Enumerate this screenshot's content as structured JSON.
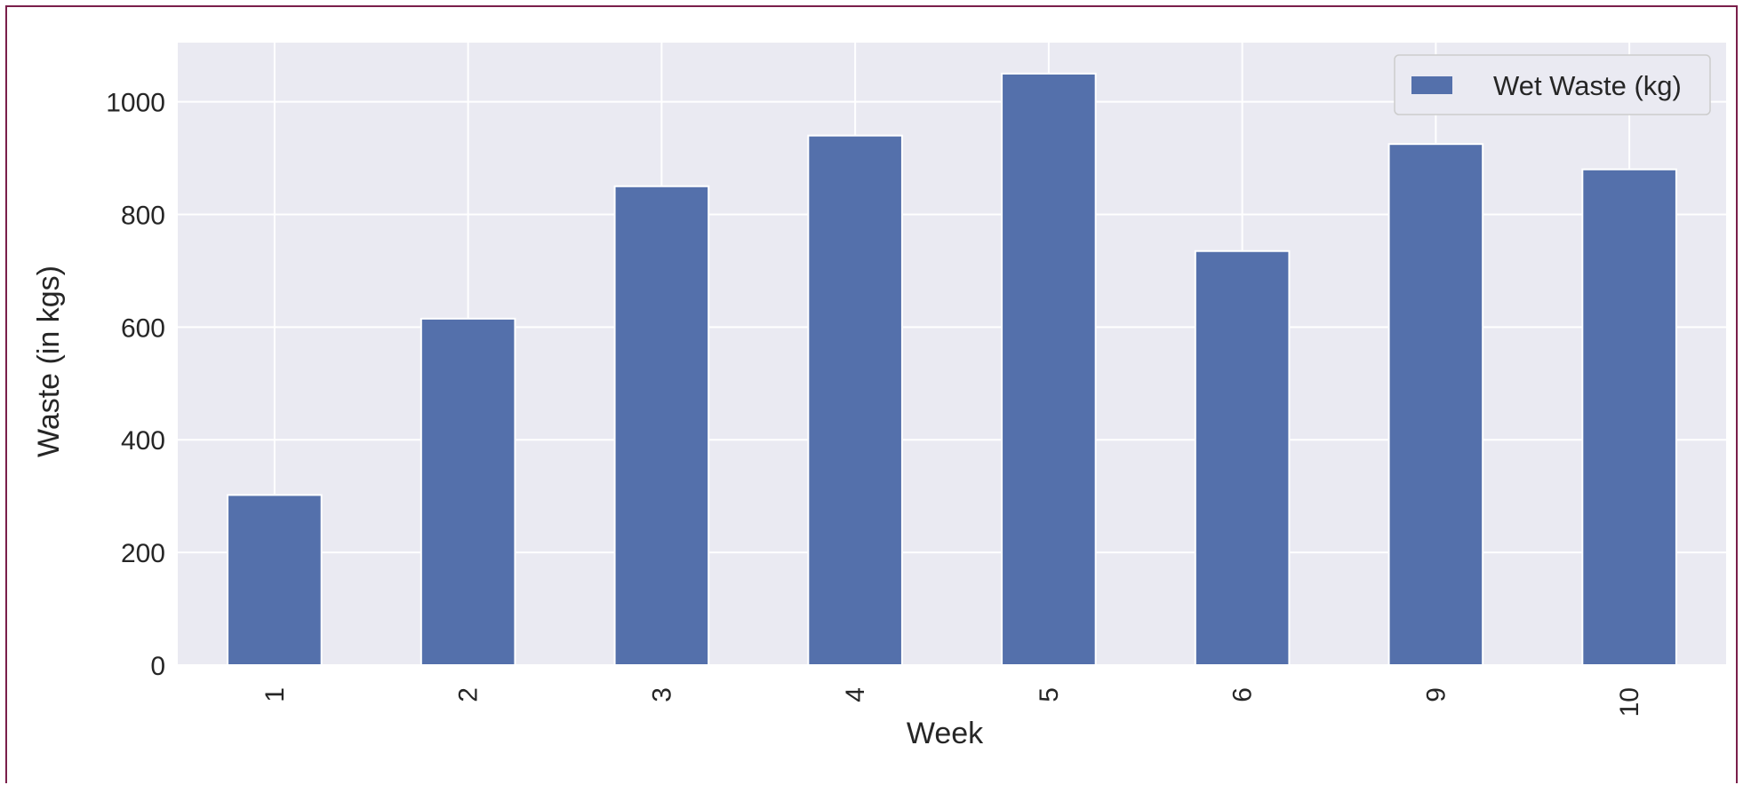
{
  "chart_data": {
    "type": "bar",
    "title": "",
    "xlabel": "Week",
    "ylabel": "Waste (in kgs)",
    "categories": [
      "1",
      "2",
      "3",
      "4",
      "5",
      "6",
      "9",
      "10"
    ],
    "series": [
      {
        "name": "Wet Waste (kg)",
        "values": [
          302,
          615,
          850,
          940,
          1050,
          735,
          925,
          880
        ],
        "color": "#5470ab"
      }
    ],
    "ylim": [
      0,
      1105
    ],
    "yticks": [
      0,
      200,
      400,
      600,
      800,
      1000
    ],
    "ytick_labels": [
      "0",
      "200",
      "400",
      "600",
      "800",
      "1000"
    ],
    "grid": true,
    "legend": {
      "position": "top-right"
    },
    "colors": {
      "plot_background": "#eaeaf2",
      "grid": "#ffffff",
      "text": "#262626",
      "frame_border": "#7a1f4a"
    }
  }
}
